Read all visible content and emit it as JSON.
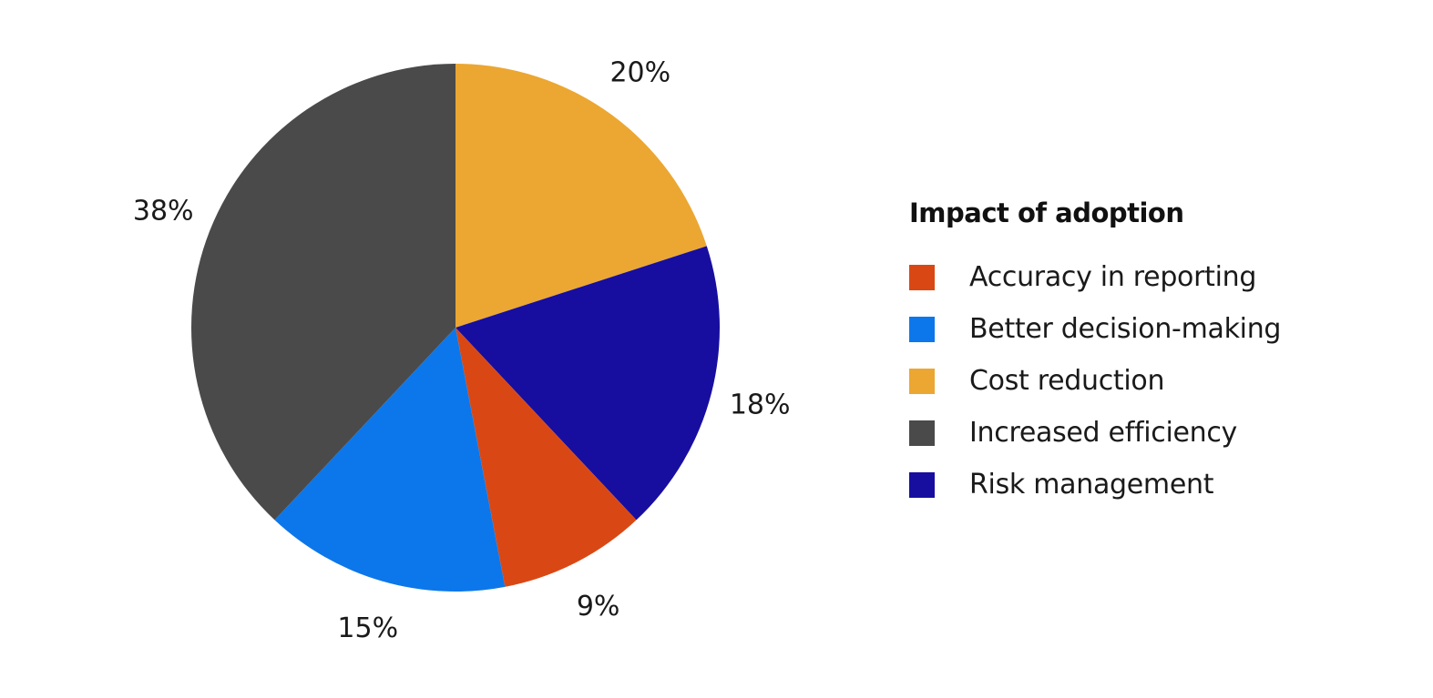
{
  "chart_data": {
    "type": "pie",
    "legend_title": "Impact of adoption",
    "legend_position": "right",
    "slices": [
      {
        "name": "Cost reduction",
        "value": 20,
        "label": "20%",
        "color": "#EBA732"
      },
      {
        "name": "Risk management",
        "value": 18,
        "label": "18%",
        "color": "#170E9F"
      },
      {
        "name": "Accuracy in reporting",
        "value": 9,
        "label": "9%",
        "color": "#D94814"
      },
      {
        "name": "Better decision-making",
        "value": 15,
        "label": "15%",
        "color": "#0C77EA"
      },
      {
        "name": "Increased efficiency",
        "value": 38,
        "label": "38%",
        "color": "#4A4A4A"
      }
    ],
    "legend": [
      {
        "name": "Accuracy in reporting",
        "color": "#D94814"
      },
      {
        "name": "Better decision-making",
        "color": "#0C77EA"
      },
      {
        "name": "Cost reduction",
        "color": "#EBA732"
      },
      {
        "name": "Increased efficiency",
        "color": "#4A4A4A"
      },
      {
        "name": "Risk management",
        "color": "#170E9F"
      }
    ]
  }
}
